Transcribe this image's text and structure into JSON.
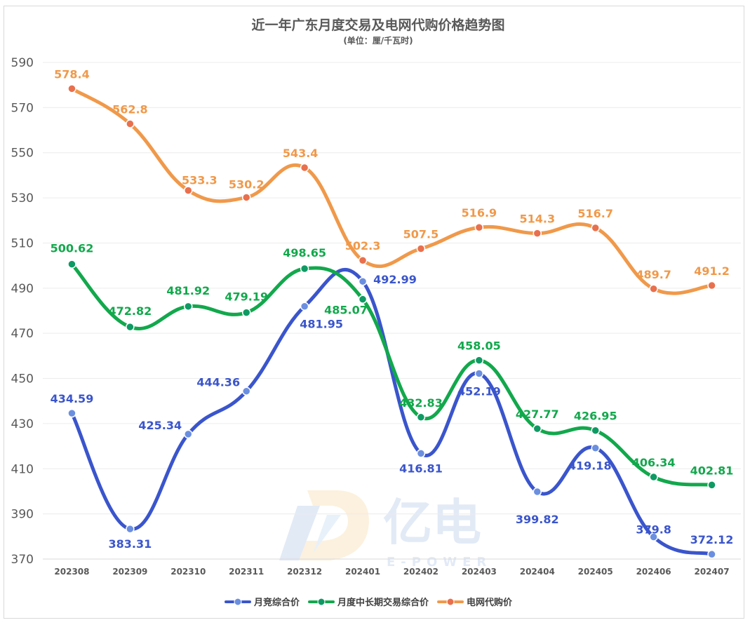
{
  "chart_data": {
    "type": "line",
    "title": "近一年广东月度交易及电网代购价格趋势图",
    "subtitle": "(单位：厘/千瓦时)",
    "categories": [
      "202308",
      "202309",
      "202310",
      "202311",
      "202312",
      "202401",
      "202402",
      "202403",
      "202404",
      "202405",
      "202406",
      "202407"
    ],
    "yticks": [
      "590",
      "570",
      "550",
      "530",
      "510",
      "490",
      "470",
      "450",
      "430",
      "410",
      "390",
      "370"
    ],
    "ylim": [
      370,
      590
    ],
    "grid": true,
    "smooth": true,
    "legend_position": "bottom",
    "series": [
      {
        "name": "月竞综合价",
        "color": "#3a55cc",
        "marker_color": "#6b8fe0",
        "values": [
          434.59,
          383.31,
          425.34,
          444.36,
          481.95,
          492.99,
          416.81,
          452.19,
          399.82,
          419.18,
          379.8,
          372.12
        ],
        "labels": [
          "434.59",
          "383.31",
          "425.34",
          "444.36",
          "481.95",
          "492.99",
          "416.81",
          "452.19",
          "399.82",
          "419.18",
          "379.8",
          "372.12"
        ]
      },
      {
        "name": "月度中长期交易综合价",
        "color": "#12a84c",
        "marker_color": "#0f9a64",
        "values": [
          500.62,
          472.82,
          481.92,
          479.19,
          498.65,
          485.07,
          432.83,
          458.05,
          427.77,
          426.95,
          406.34,
          402.81
        ],
        "labels": [
          "500.62",
          "472.82",
          "481.92",
          "479.19",
          "498.65",
          "485.07",
          "432.83",
          "458.05",
          "427.77",
          "426.95",
          "406.34",
          "402.81"
        ]
      },
      {
        "name": "电网代购价",
        "color": "#f0994a",
        "marker_color": "#e9704d",
        "values": [
          578.4,
          562.8,
          533.3,
          530.2,
          543.4,
          502.3,
          507.5,
          516.9,
          514.3,
          516.7,
          489.7,
          491.2
        ],
        "labels": [
          "578.4",
          "562.8",
          "533.3",
          "530.2",
          "543.4",
          "502.3",
          "507.5",
          "516.9",
          "514.3",
          "516.7",
          "489.7",
          "491.2"
        ]
      }
    ]
  },
  "watermark": {
    "brand": "亿电",
    "sub": "E-POWER"
  }
}
